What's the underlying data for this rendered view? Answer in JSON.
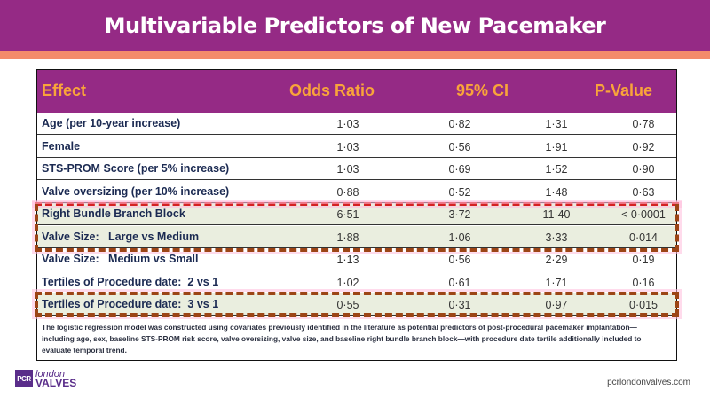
{
  "title": "Multivariable Predictors of New Pacemaker",
  "colors": {
    "title_bar": "#952a85",
    "accent_stripe": "#f48b6b",
    "header_text": "#f9a43a",
    "highlight_row": "#eaeedf",
    "dash_red": "#d42222",
    "dash_brown": "#9c4516"
  },
  "table": {
    "headers": {
      "effect": "Effect",
      "odds_ratio": "Odds Ratio",
      "ci": "95% CI",
      "p_value": "P-Value"
    },
    "rows": [
      {
        "effect": "Age (per 10-year increase)",
        "or": "1·03",
        "ci_low": "0·82",
        "ci_high": "1·31",
        "p": "0·78",
        "highlighted": false
      },
      {
        "effect": "Female",
        "or": "1·03",
        "ci_low": "0·56",
        "ci_high": "1·91",
        "p": "0·92",
        "highlighted": false
      },
      {
        "effect": "STS-PROM Score (per 5% increase)",
        "or": "1·03",
        "ci_low": "0·69",
        "ci_high": "1·52",
        "p": "0·90",
        "highlighted": false
      },
      {
        "effect": "Valve oversizing (per 10% increase)",
        "or": "0·88",
        "ci_low": "0·52",
        "ci_high": "1·48",
        "p": "0·63",
        "highlighted": false
      },
      {
        "effect": "Right Bundle Branch Block",
        "or": "6·51",
        "ci_low": "3·72",
        "ci_high": "11·40",
        "p": "< 0·0001",
        "highlighted": true
      },
      {
        "effect": "Valve Size:   Large vs Medium",
        "or": "1·88",
        "ci_low": "1·06",
        "ci_high": "3·33",
        "p": "0·014",
        "highlighted": true
      },
      {
        "effect": "Valve Size:   Medium vs Small",
        "or": "1·13",
        "ci_low": "0·56",
        "ci_high": "2·29",
        "p": "0·19",
        "highlighted": false
      },
      {
        "effect": "Tertiles of Procedure date:  2 vs 1",
        "or": "1·02",
        "ci_low": "0·61",
        "ci_high": "1·71",
        "p": "0·16",
        "highlighted": false
      },
      {
        "effect": "Tertiles of Procedure date:  3 vs 1",
        "or": "0·55",
        "ci_low": "0·31",
        "ci_high": "0·97",
        "p": "0·015",
        "highlighted": true
      }
    ],
    "footnote": "The logistic regression model was constructed using covariates previously identified in the literature as potential predictors of post-procedural pacemaker implantation—including age, sex, baseline STS-PROM risk score, valve oversizing, valve size, and baseline right bundle branch block—with procedure date tertile additionally included to evaluate temporal trend."
  },
  "footer": {
    "logo_badge": "PCR",
    "logo_line1": "london",
    "logo_line2": "VALVES",
    "url": "pcrlondonvalves.com"
  }
}
